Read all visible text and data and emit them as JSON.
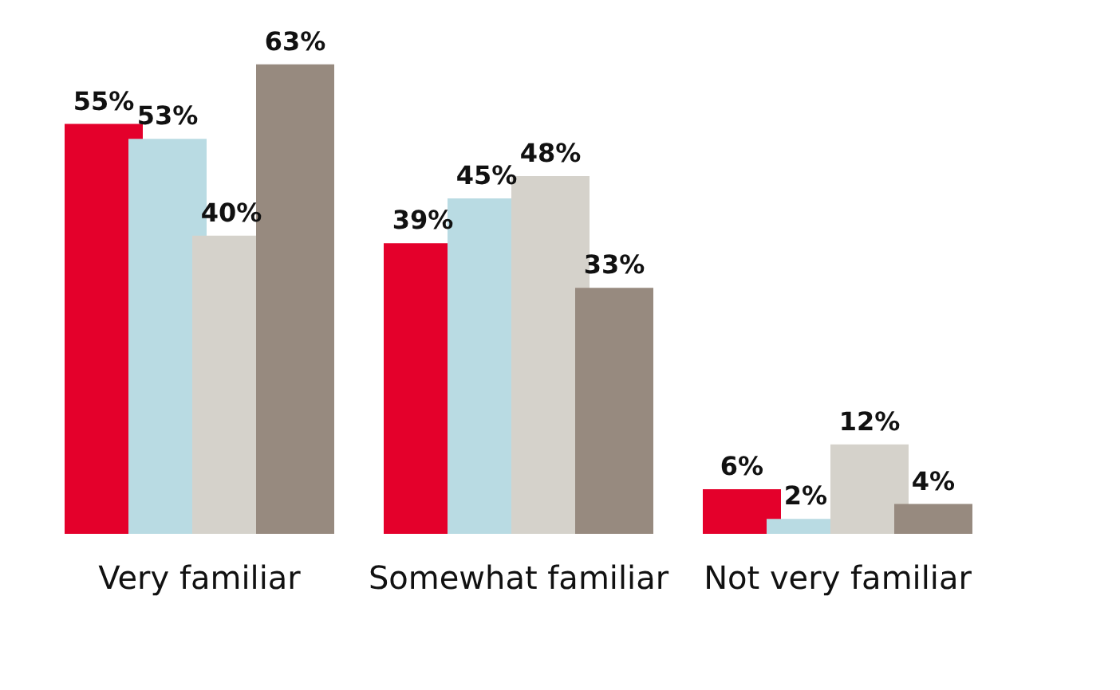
{
  "chart_data": {
    "type": "bar",
    "categories": [
      "Very familiar",
      "Somewhat familiar",
      "Not very familiar"
    ],
    "series": [
      {
        "color": "#e4002b",
        "values": [
          55,
          39,
          6
        ],
        "value_labels": [
          "55%",
          "39%",
          "6%"
        ]
      },
      {
        "color": "#b9dbe3",
        "values": [
          53,
          45,
          2
        ],
        "value_labels": [
          "53%",
          "45%",
          "2%"
        ]
      },
      {
        "color": "#d5d2cb",
        "values": [
          40,
          48,
          12
        ],
        "value_labels": [
          "40%",
          "48%",
          "12%"
        ]
      },
      {
        "color": "#978a7f",
        "values": [
          63,
          33,
          4
        ],
        "value_labels": [
          "63%",
          "33%",
          "4%"
        ]
      }
    ],
    "grid": false,
    "legend": false
  }
}
